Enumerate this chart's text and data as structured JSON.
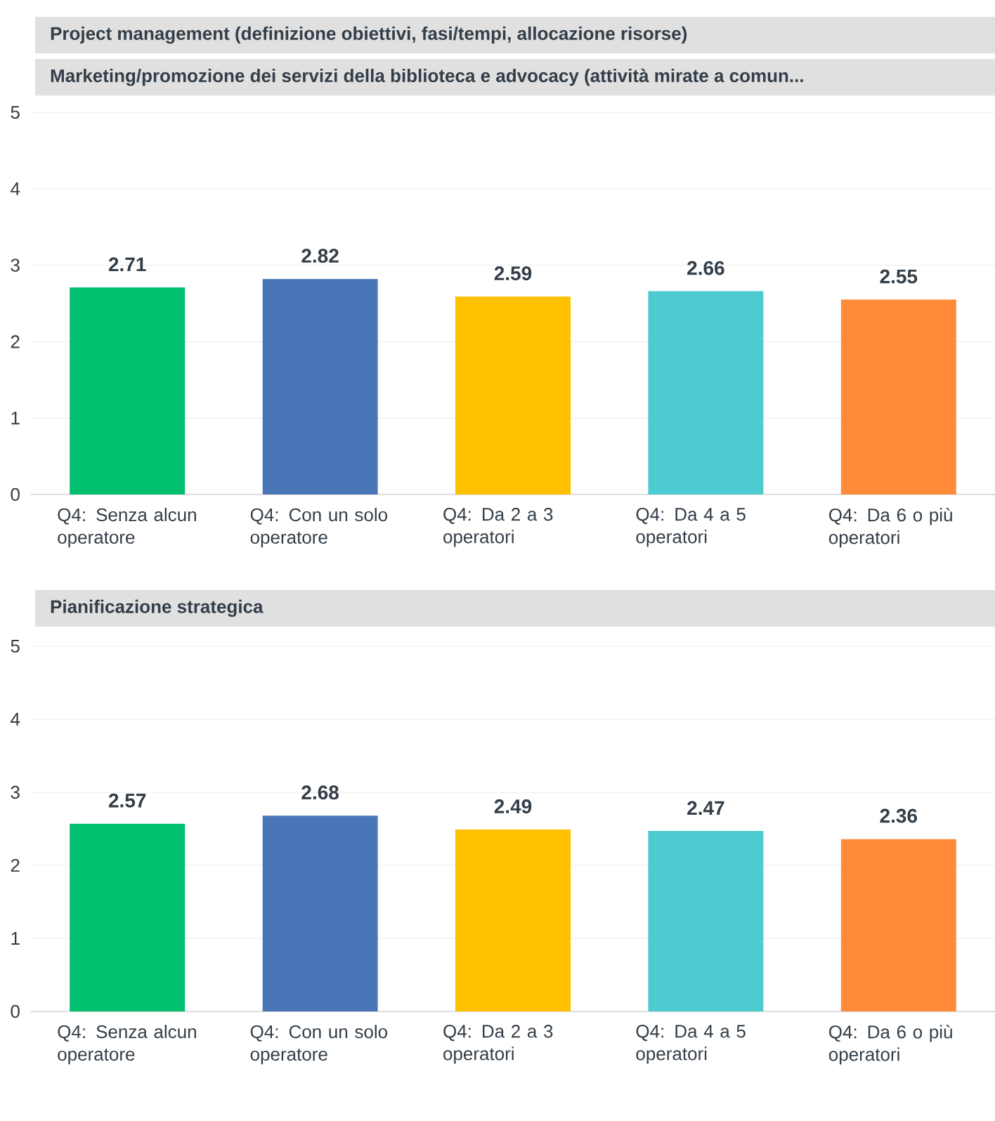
{
  "chart_data": [
    {
      "type": "bar",
      "title": "Project management (definizione obiettivi, fasi/tempi, allocazione risorse)",
      "subtitle": "Marketing/promozione dei servizi della biblioteca e advocacy (attività mirate a comun...",
      "categories": [
        "Q4: Senza alcun operatore",
        "Q4: Con un solo operatore",
        "Q4: Da 2 a 3 operatori",
        "Q4: Da 4 a 5 operatori",
        "Q4: Da 6 o più operatori"
      ],
      "values": [
        2.71,
        2.82,
        2.59,
        2.66,
        2.55
      ],
      "colors": [
        "#00bf6f",
        "#4a76b8",
        "#ffc000",
        "#4ecbd0",
        "#ff8a3a"
      ],
      "ylim": [
        0,
        5
      ],
      "yticks": [
        0,
        1,
        2,
        3,
        4,
        5
      ],
      "grid": "y",
      "data_labels": true
    },
    {
      "type": "bar",
      "title": "Pianificazione strategica",
      "categories": [
        "Q4: Senza alcun operatore",
        "Q4: Con un solo operatore",
        "Q4: Da 2 a 3 operatori",
        "Q4: Da 4 a 5 operatori",
        "Q4: Da 6 o più operatori"
      ],
      "values": [
        2.57,
        2.68,
        2.49,
        2.47,
        2.36
      ],
      "colors": [
        "#00bf6f",
        "#4a76b8",
        "#ffc000",
        "#4ecbd0",
        "#ff8a3a"
      ],
      "ylim": [
        0,
        5
      ],
      "yticks": [
        0,
        1,
        2,
        3,
        4,
        5
      ],
      "grid": "y",
      "data_labels": true
    }
  ]
}
